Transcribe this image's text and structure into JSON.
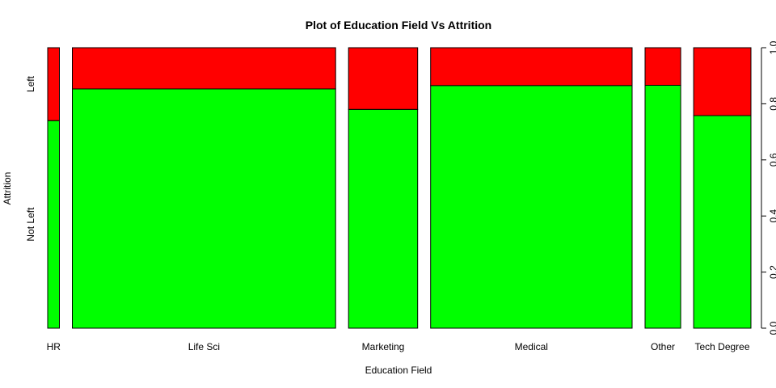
{
  "chart_data": {
    "type": "mosaic",
    "title": "Plot of Education Field Vs Attrition",
    "xlabel": "Education Field",
    "ylabel": "Attrition",
    "categories": [
      "HR",
      "Life Sci",
      "Marketing",
      "Medical",
      "Other",
      "Tech Degree"
    ],
    "category_share": [
      0.0184,
      0.4123,
      0.1082,
      0.3156,
      0.0558,
      0.0898
    ],
    "y_levels": [
      "Not Left",
      "Left"
    ],
    "series": [
      {
        "name": "Not Left",
        "color": "#00ff00",
        "values": [
          0.74,
          0.853,
          0.78,
          0.865,
          0.866,
          0.758
        ]
      },
      {
        "name": "Left",
        "color": "#ff0000",
        "values": [
          0.26,
          0.147,
          0.22,
          0.135,
          0.134,
          0.242
        ]
      }
    ],
    "ylim": [
      0,
      1
    ],
    "y_ticks": [
      "0.0",
      "0.2",
      "0.4",
      "0.6",
      "0.8",
      "1.0"
    ],
    "y_tick_values": [
      0,
      0.2,
      0.4,
      0.6,
      0.8,
      1.0
    ],
    "right_axis": true,
    "grid": false
  }
}
